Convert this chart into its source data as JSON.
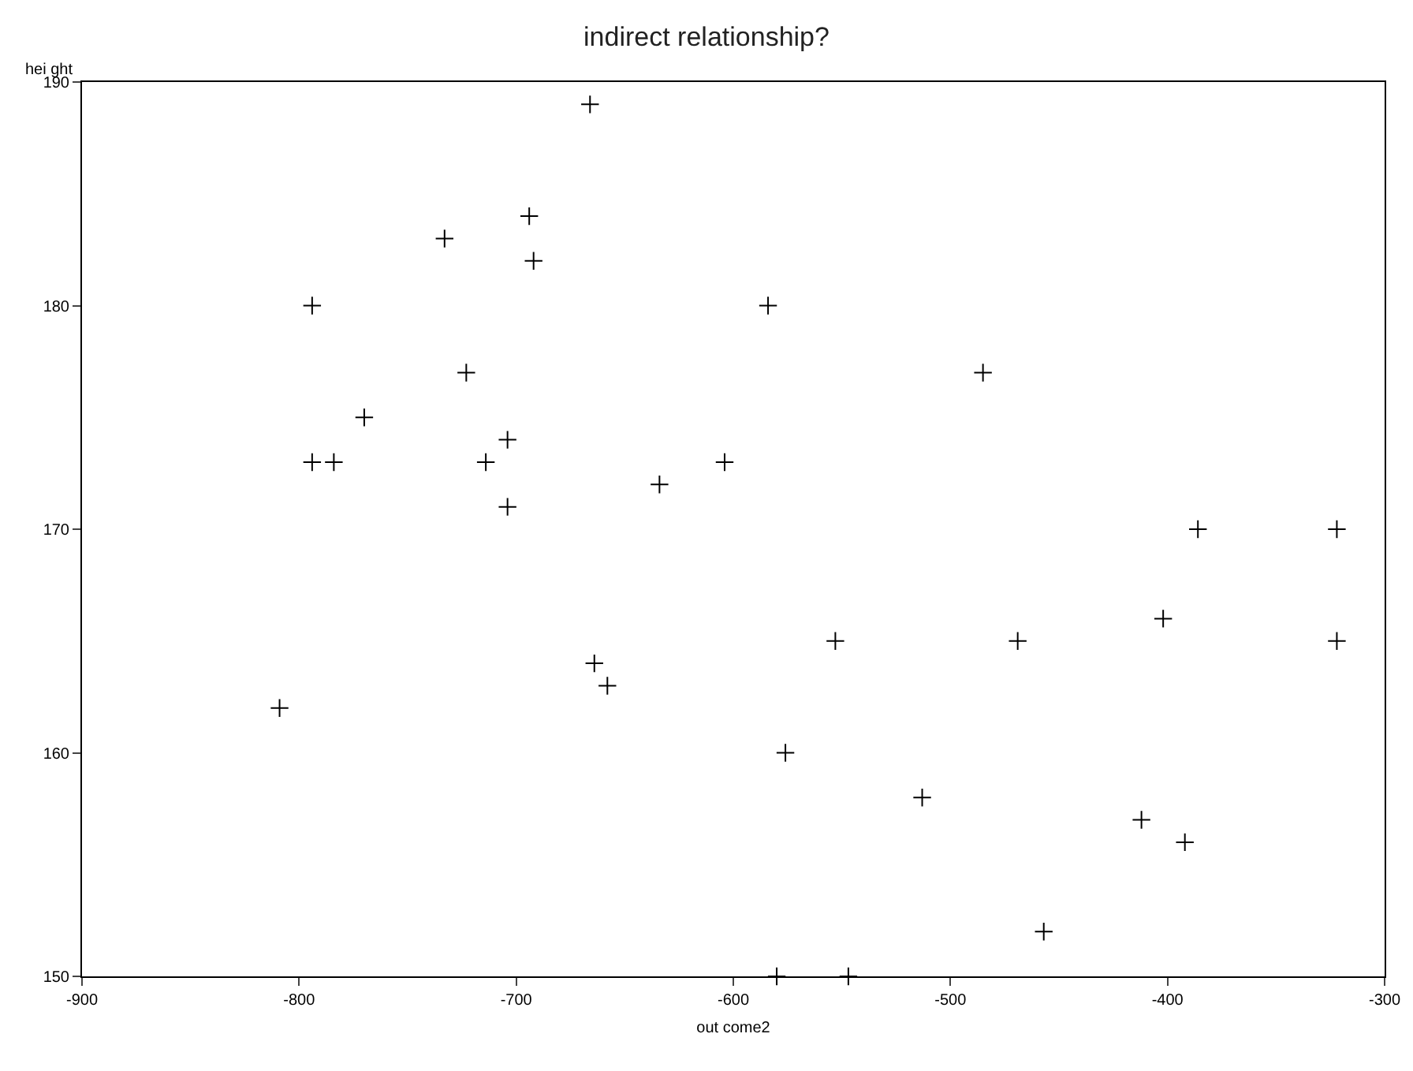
{
  "chart_data": {
    "type": "scatter",
    "title": "indirect relationship?",
    "xlabel": "out come2",
    "ylabel": "hei ght",
    "x": [
      -666,
      -733,
      -694,
      -692,
      -794,
      -584,
      -723,
      -485,
      -770,
      -704,
      -794,
      -784,
      -714,
      -604,
      -704,
      -634,
      -386,
      -322,
      -553,
      -469,
      -322,
      -402,
      -664,
      -658,
      -809,
      -576,
      -513,
      -412,
      -392,
      -457,
      -580,
      -547
    ],
    "values": [
      189,
      183,
      184,
      182,
      180,
      180,
      177,
      177,
      175,
      174,
      173,
      173,
      173,
      173,
      171,
      172,
      170,
      170,
      165,
      165,
      165,
      166,
      164,
      163,
      162,
      160,
      158,
      157,
      156,
      152,
      150,
      150
    ],
    "color": "#000000",
    "marker": "cross",
    "grid": false,
    "xlim": [
      -900,
      -300
    ],
    "xticks": [
      -900,
      -800,
      -700,
      -600,
      -500,
      -400,
      -300
    ],
    "ylim": [
      150,
      190
    ],
    "yticks": [
      150,
      160,
      170,
      180,
      190
    ]
  }
}
